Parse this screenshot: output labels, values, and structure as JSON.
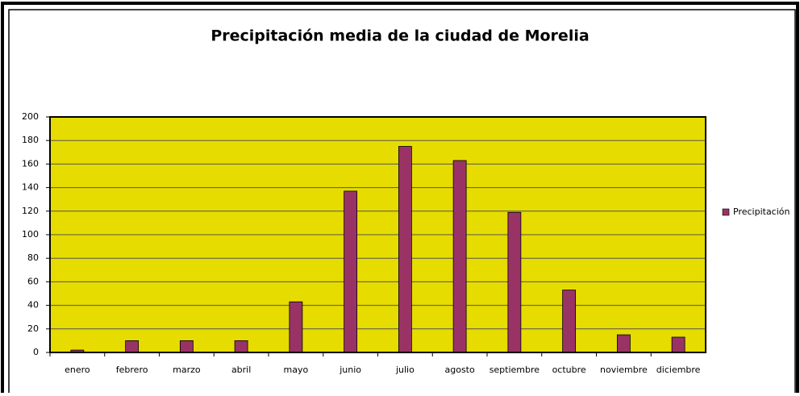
{
  "chart_data": {
    "type": "bar",
    "title": "Precipitación media de la ciudad de Morelia",
    "categories": [
      "enero",
      "febrero",
      "marzo",
      "abril",
      "mayo",
      "junio",
      "julio",
      "agosto",
      "septiembre",
      "octubre",
      "noviembre",
      "diciembre"
    ],
    "series": [
      {
        "name": "Precipitación",
        "color": "#993366",
        "values": [
          2,
          10,
          10,
          10,
          43,
          137,
          175,
          163,
          119,
          53,
          15,
          13
        ]
      }
    ],
    "ylim": [
      0,
      200
    ],
    "yticks": [
      0,
      20,
      40,
      60,
      80,
      100,
      120,
      140,
      160,
      180,
      200
    ],
    "grid": true,
    "legend": "right",
    "plot_background": "#e6dc00"
  }
}
